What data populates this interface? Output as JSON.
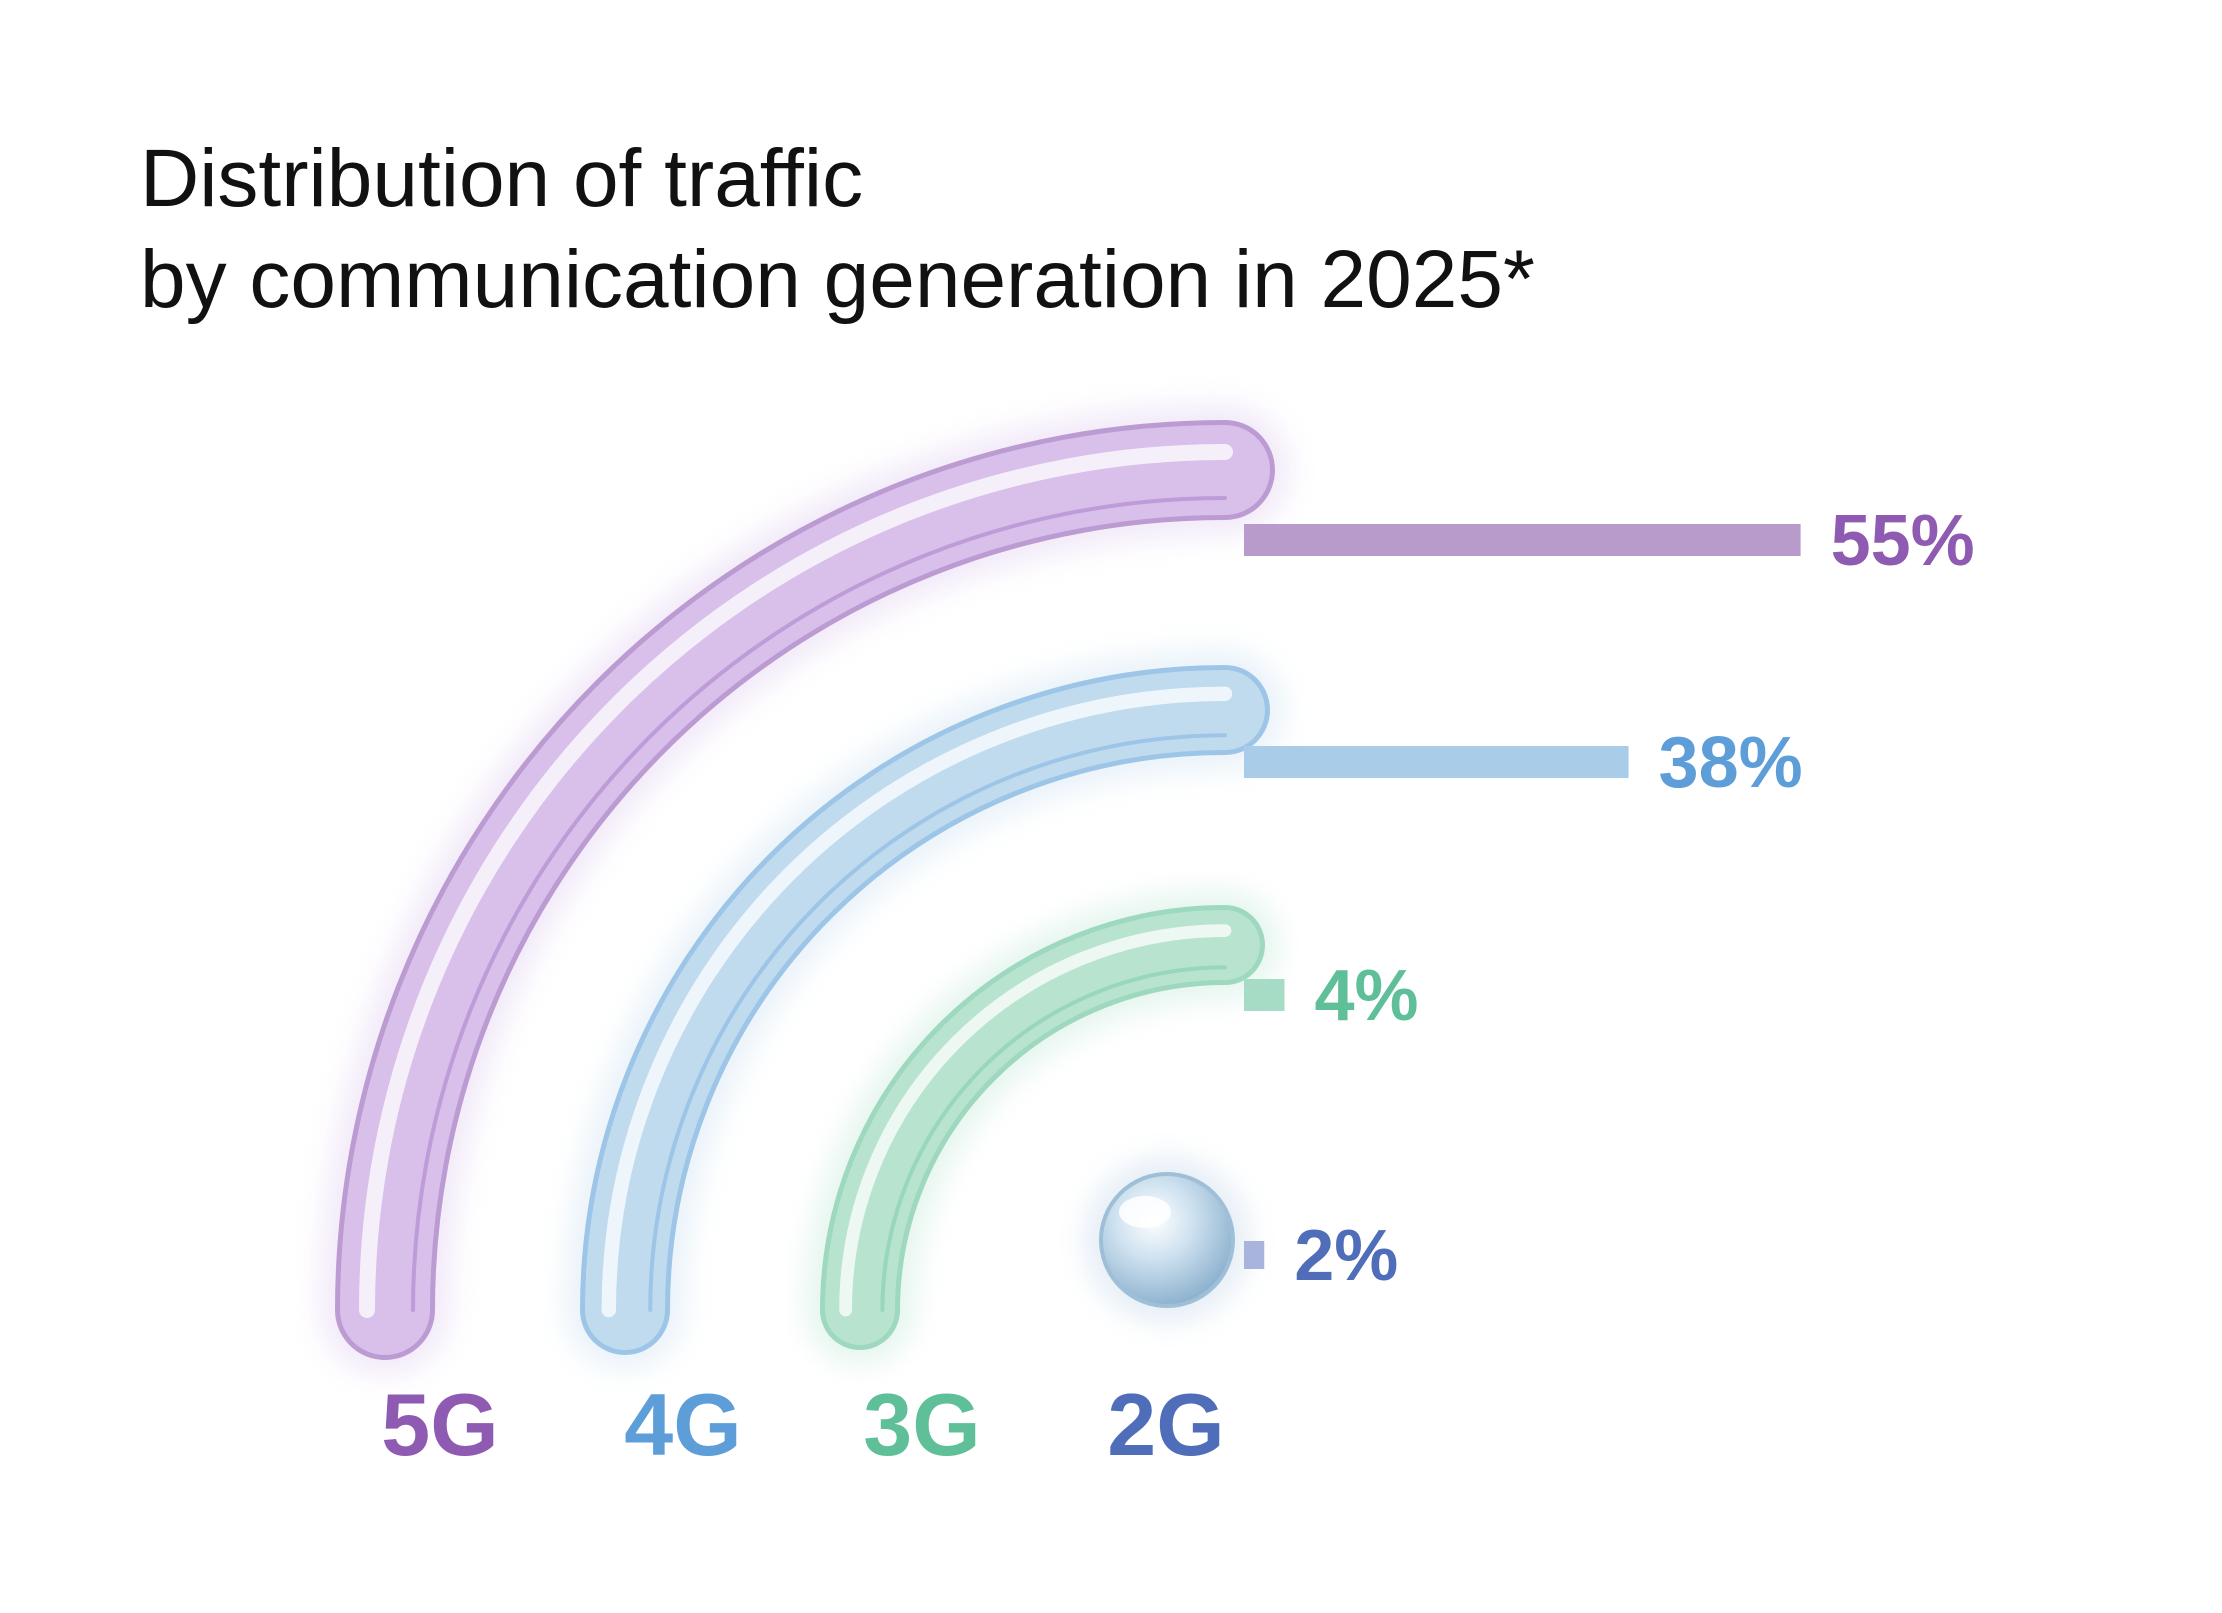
{
  "chart_data": {
    "type": "bar",
    "title_lines": [
      "Distribution of traffic",
      "by communication generation in 2025*"
    ],
    "categories": [
      "5G",
      "4G",
      "3G",
      "2G"
    ],
    "values": [
      55,
      38,
      4,
      2
    ],
    "value_labels": [
      "55%",
      "38%",
      "4%",
      "2%"
    ],
    "unit": "%",
    "xlim": [
      0,
      60
    ],
    "orientation": "horizontal",
    "grid": false,
    "legend": "none",
    "colors": [
      "#8e5ab2",
      "#5d9ed9",
      "#5fbf98",
      "#4f6db8"
    ],
    "bar_colors": [
      "#b89bcb",
      "#a9cce9",
      "#a6dcc5",
      "#a8b4dc"
    ],
    "glass_colors": [
      "#d9c2ec",
      "#c2dcee",
      "#b8e4d0",
      "#c4d8ea"
    ]
  }
}
